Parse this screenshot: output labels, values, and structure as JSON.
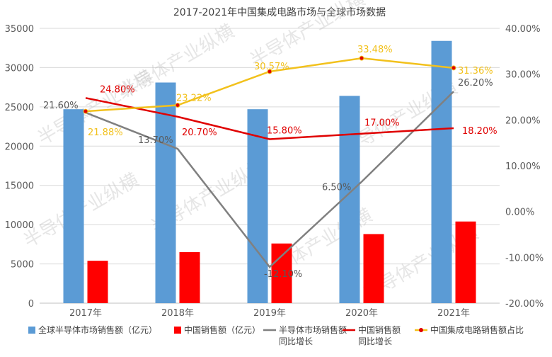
{
  "watermark": "半导体产业纵横",
  "chart_data": {
    "type": "bar",
    "title": "2017-2021年中国集成电路市场与全球市场数据",
    "categories": [
      "2017年",
      "2018年",
      "2019年",
      "2020年",
      "2021年"
    ],
    "y_left": {
      "min": 0,
      "max": 35000,
      "step": 5000,
      "ticks": [
        "0",
        "5000",
        "10000",
        "15000",
        "20000",
        "25000",
        "30000",
        "35000"
      ]
    },
    "y_right": {
      "min": -20,
      "max": 40,
      "step": 10,
      "ticks": [
        "-20.00%",
        "-10.00%",
        "0.00%",
        "10.00%",
        "20.00%",
        "30.00%",
        "40.00%"
      ]
    },
    "grid": true,
    "legend_position": "bottom",
    "series": [
      {
        "name": "全球半导体市场销售额（亿元）",
        "kind": "bar",
        "axis": "left",
        "color": "#5b9bd5",
        "values": [
          24700,
          28100,
          24700,
          26400,
          33400
        ]
      },
      {
        "name": "中国销售额（亿元）",
        "kind": "bar",
        "axis": "left",
        "color": "#ff0000",
        "values": [
          5400,
          6500,
          7600,
          8800,
          10400
        ]
      },
      {
        "name": "半导体市场销售额\n同比增长",
        "kind": "line",
        "axis": "right",
        "color": "#808080",
        "values": [
          21.6,
          13.7,
          -12.1,
          6.5,
          26.2
        ],
        "labels": [
          "21.60%",
          "13.70%",
          "-12.10%",
          "6.50%",
          "26.20%"
        ]
      },
      {
        "name": "中国销售额\n同比增长",
        "kind": "line",
        "axis": "right",
        "color": "#e00000",
        "values": [
          24.8,
          20.7,
          15.8,
          17.0,
          18.2
        ],
        "labels": [
          "24.80%",
          "20.70%",
          "15.80%",
          "17.00%",
          "18.20%"
        ]
      },
      {
        "name": "中国集成电路销售额占比",
        "kind": "line-marker",
        "axis": "right",
        "color": "#f2c11c",
        "marker_color": "#e00000",
        "values": [
          21.88,
          23.22,
          30.57,
          33.48,
          31.36
        ],
        "labels": [
          "21.88%",
          "23.22%",
          "30.57%",
          "33.48%",
          "31.36%"
        ]
      }
    ]
  }
}
